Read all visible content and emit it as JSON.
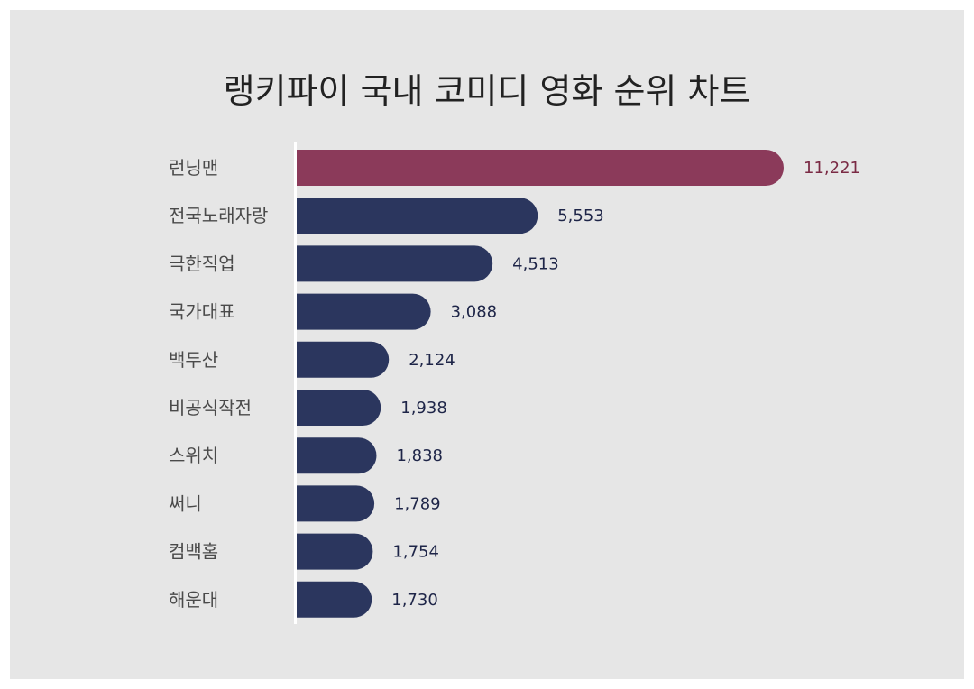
{
  "chart_data": {
    "type": "bar",
    "orientation": "horizontal",
    "title": "랭키파이 국내 코미디 영화 순위 차트",
    "categories": [
      "런닝맨",
      "전국노래자랑",
      "극한직업",
      "국가대표",
      "백두산",
      "비공식작전",
      "스위치",
      "써니",
      "컴백홈",
      "해운대"
    ],
    "values": [
      11221,
      5553,
      4513,
      3088,
      2124,
      1938,
      1838,
      1789,
      1754,
      1730
    ],
    "value_labels": [
      "11,221",
      "5,553",
      "4,513",
      "3,088",
      "2,124",
      "1,938",
      "1,838",
      "1,789",
      "1,754",
      "1,730"
    ],
    "xlim": [
      0,
      11221
    ],
    "grid": false,
    "legend": "none"
  },
  "colors": {
    "highlight_bar": "#8b3a5a",
    "bar": "#2b365e",
    "highlight_label": "#7a2a44",
    "label": "#1e2548",
    "axis": "#ffffff",
    "background": "#e6e6e6"
  }
}
